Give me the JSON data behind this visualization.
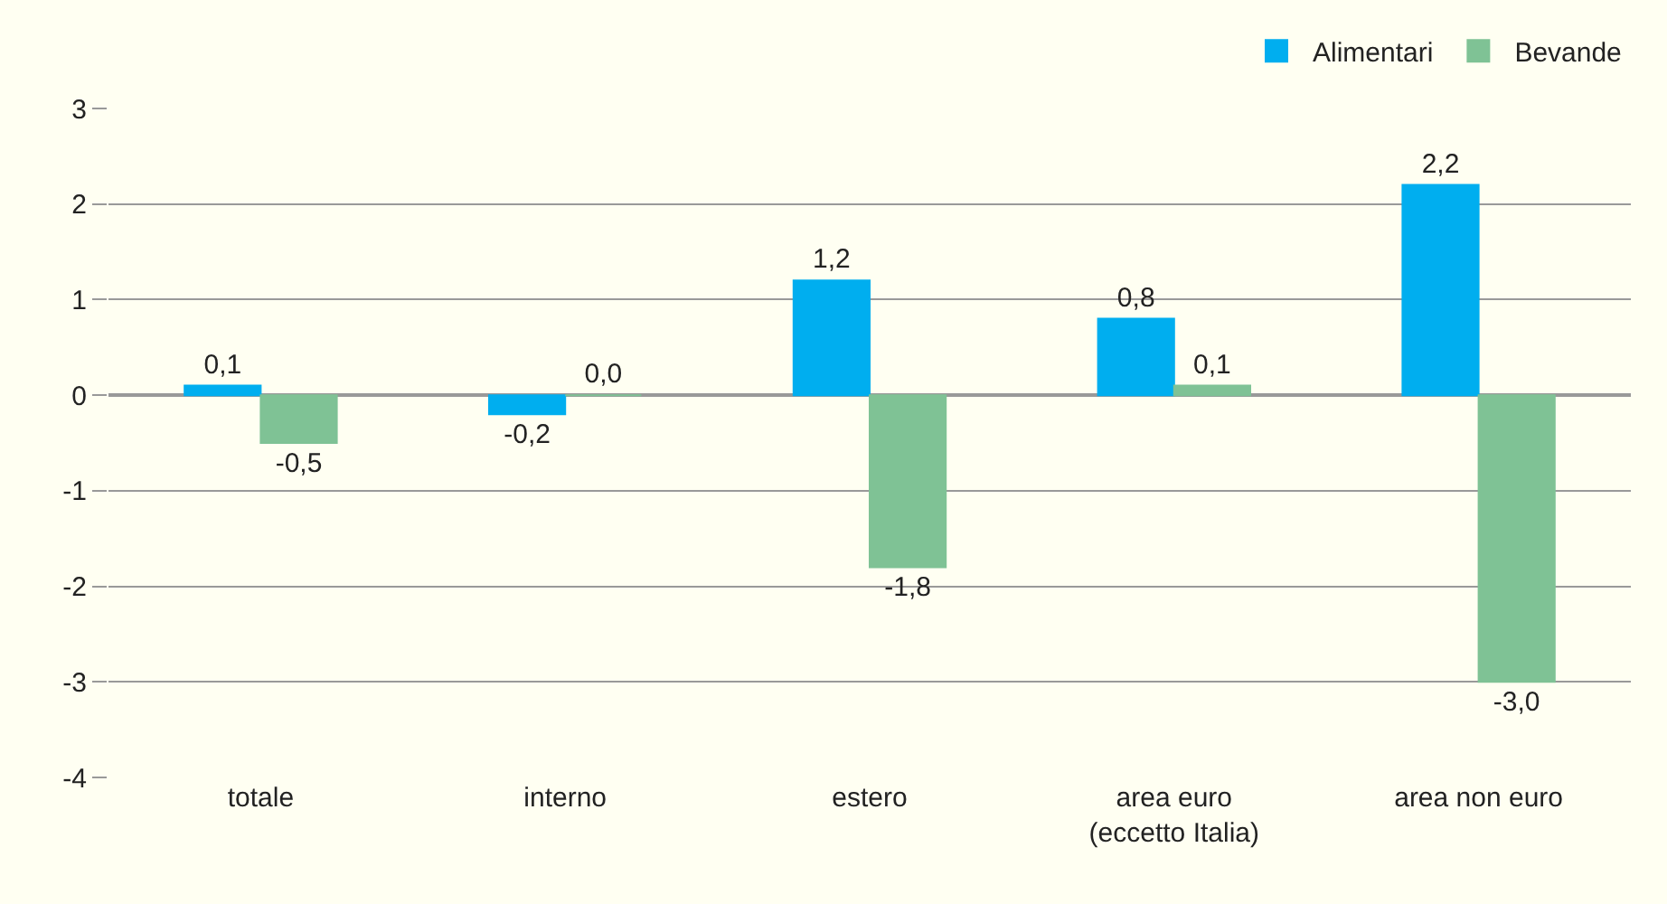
{
  "chart_data": {
    "type": "bar",
    "categories": [
      "totale",
      "interno",
      "estero",
      "area euro\n(eccetto Italia)",
      "area non euro"
    ],
    "series": [
      {
        "name": "Alimentari",
        "color": "#00aeef",
        "values": [
          0.1,
          -0.2,
          1.2,
          0.8,
          2.2
        ],
        "value_labels": [
          "0,1",
          "-0,2",
          "1,2",
          "0,8",
          "2,2"
        ]
      },
      {
        "name": "Bevande",
        "color": "#7fc295",
        "values": [
          -0.5,
          0.0,
          -1.8,
          0.1,
          -3.0
        ],
        "value_labels": [
          "-0,5",
          "0,0",
          "-1,8",
          "0,1",
          "-3,0"
        ]
      }
    ],
    "ylim": [
      -4,
      3
    ],
    "yticks": [
      -4,
      -3,
      -2,
      -1,
      0,
      1,
      2,
      3
    ],
    "grid": "y",
    "legend": "top right"
  }
}
